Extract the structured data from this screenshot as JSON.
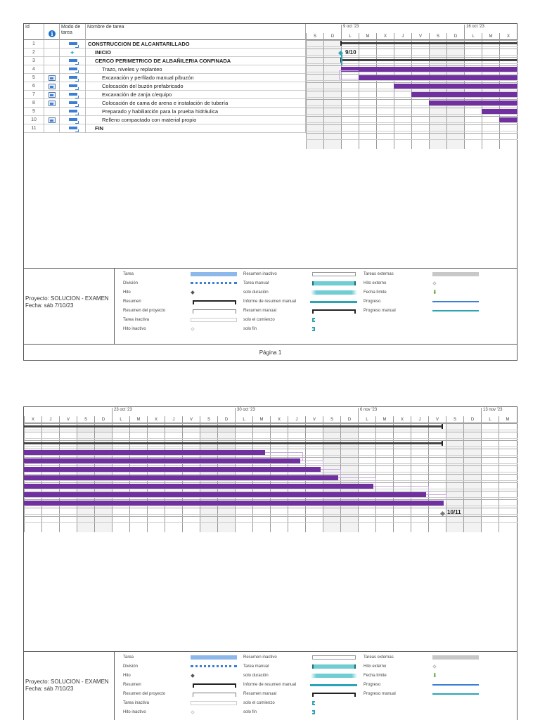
{
  "table": {
    "headers": {
      "id": "Id",
      "indicators": "i",
      "mode": "Modo de tarea",
      "name": "Nombre de tarea"
    },
    "rows": [
      {
        "id": "1",
        "indicator": "",
        "mode": "auto",
        "name": "CONSTRUCCION DE ALCANTARILLADO",
        "bold": true,
        "indent": 0
      },
      {
        "id": "2",
        "indicator": "",
        "mode": "manual",
        "name": "INICIO",
        "bold": true,
        "indent": 1
      },
      {
        "id": "3",
        "indicator": "",
        "mode": "auto",
        "name": "CERCO PERIMETRICO DE ALBAÑILERIA CONFINADA",
        "bold": true,
        "indent": 1
      },
      {
        "id": "4",
        "indicator": "",
        "mode": "auto",
        "name": "Trazo, niveles y replanteo",
        "bold": false,
        "indent": 2
      },
      {
        "id": "5",
        "indicator": "calendar",
        "mode": "auto",
        "name": "Excavación y perfilado manual p/buzón",
        "bold": false,
        "indent": 2
      },
      {
        "id": "6",
        "indicator": "calendar",
        "mode": "auto",
        "name": "Colocación del buzón prefabricado",
        "bold": false,
        "indent": 2
      },
      {
        "id": "7",
        "indicator": "calendar",
        "mode": "auto",
        "name": "Excavación de zanja c/equipo",
        "bold": false,
        "indent": 2
      },
      {
        "id": "8",
        "indicator": "calendar",
        "mode": "auto",
        "name": "Colocación de cama de arena e instalación de tubería",
        "bold": false,
        "indent": 2
      },
      {
        "id": "9",
        "indicator": "",
        "mode": "auto",
        "name": "Preparado y habiliatción para la prueba hidráulica",
        "bold": false,
        "indent": 2
      },
      {
        "id": "10",
        "indicator": "calendar",
        "mode": "auto",
        "name": "Relleno compactado con material propio",
        "bold": false,
        "indent": 2
      },
      {
        "id": "11",
        "indicator": "",
        "mode": "auto",
        "name": "FIN",
        "bold": true,
        "indent": 1
      }
    ]
  },
  "page1": {
    "weeks": [
      {
        "label": "9 oct '23",
        "day_index": 2
      },
      {
        "label": "16 oct '23",
        "day_index": 9
      }
    ],
    "days": [
      "S",
      "D",
      "L",
      "M",
      "X",
      "J",
      "V",
      "S",
      "D",
      "L",
      "M",
      "X"
    ],
    "milestone_start_label": "9/10",
    "footer": "Página 1"
  },
  "page2": {
    "weeks": [
      {
        "label": "23 oct '23",
        "day_index": 5
      },
      {
        "label": "30 oct '23",
        "day_index": 12
      },
      {
        "label": "6 nov '23",
        "day_index": 19
      },
      {
        "label": "13 nov '23",
        "day_index": 26
      }
    ],
    "days": [
      "X",
      "J",
      "V",
      "S",
      "D",
      "L",
      "M",
      "X",
      "J",
      "V",
      "S",
      "D",
      "L",
      "M",
      "X",
      "J",
      "V",
      "S",
      "D",
      "L",
      "M",
      "X",
      "J",
      "V",
      "S",
      "D",
      "L",
      "M"
    ],
    "milestone_end_label": "10/11"
  },
  "legend": {
    "project": "Proyecto: SOLUCION - EXAMEN",
    "date": "Fecha: sáb 7/10/23",
    "col1": [
      "Tarea",
      "División",
      "Hito",
      "Resumen",
      "Resumen del proyecto",
      "Tarea inactiva",
      "Hito inactivo"
    ],
    "col2": [
      "Resumen inactivo",
      "Tarea manual",
      "solo duración",
      "Informe de resumen manual",
      "Resumen manual",
      "solo el comienzo",
      "solo fin"
    ],
    "col3": [
      "Tareas externas",
      "Hito externo",
      "Fecha límite",
      "Progreso",
      "Progreso manual"
    ]
  },
  "colors": {
    "task_bar": "#7030a0",
    "summary": "#444444",
    "milestone_start": "#2aa5b5",
    "weekend": "#f2f2f2",
    "legend_task": "#8db8ea",
    "legend_manual": "#6fcdd4",
    "legend_progress": "#3b7fd4",
    "legend_manual_progress": "#2aa5b5",
    "legend_external": "#c8c8c8",
    "legend_deadline": "#5aa02c"
  }
}
